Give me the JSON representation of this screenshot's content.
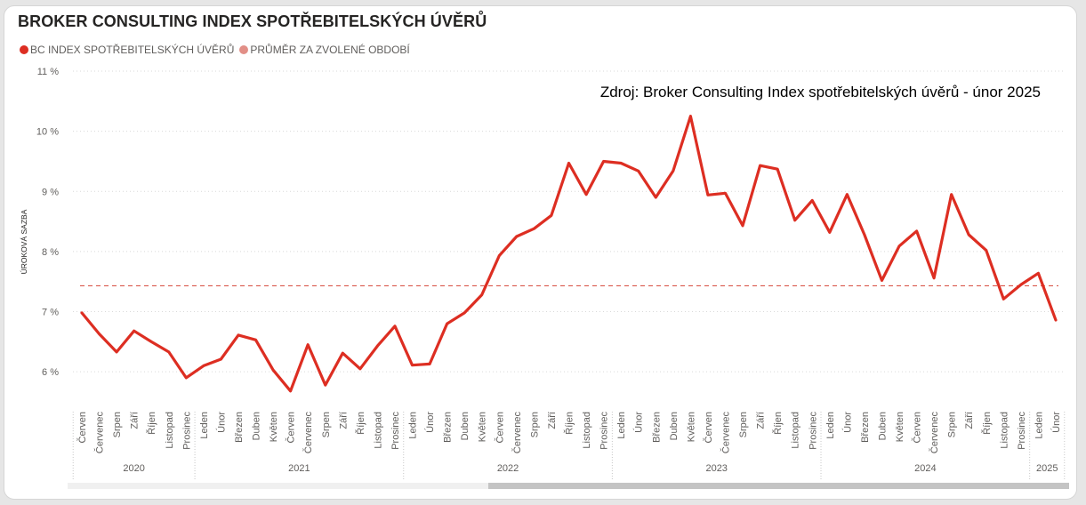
{
  "title": "BROKER CONSULTING INDEX SPOTŘEBITELSKÝCH ÚVĚRŮ",
  "legend": [
    {
      "label": "BC INDEX SPOTŘEBITELSKÝCH ÚVĚRŮ",
      "color": "#dd2e22"
    },
    {
      "label": "PRŮMĚR ZA ZVOLENÉ OBDOBÍ",
      "color": "#e28f87"
    }
  ],
  "chart_data": {
    "type": "line",
    "annotation": "Zdroj: Broker Consulting Index spotřebitelských úvěrů - únor 2025",
    "ylabel": "ÚROKOVÁ SAZBA",
    "ylim": [
      5.5,
      11
    ],
    "yticks": [
      6,
      7,
      8,
      9,
      10,
      11
    ],
    "ytick_labels": [
      "6 %",
      "7 %",
      "8 %",
      "9 %",
      "10 %",
      "11 %"
    ],
    "grid": true,
    "x": [
      "Červen",
      "Červenec",
      "Srpen",
      "Září",
      "Říjen",
      "Listopad",
      "Prosinec",
      "Leden",
      "Únor",
      "Březen",
      "Duben",
      "Květen",
      "Červen",
      "Červenec",
      "Srpen",
      "Září",
      "Říjen",
      "Listopad",
      "Prosinec",
      "Leden",
      "Únor",
      "Březen",
      "Duben",
      "Květen",
      "Červen",
      "Červenec",
      "Srpen",
      "Září",
      "Říjen",
      "Listopad",
      "Prosinec",
      "Leden",
      "Únor",
      "Březen",
      "Duben",
      "Květen",
      "Červen",
      "Červenec",
      "Srpen",
      "Září",
      "Říjen",
      "Listopad",
      "Prosinec",
      "Leden",
      "Únor",
      "Březen",
      "Duben",
      "Květen",
      "Červen",
      "Červenec",
      "Srpen",
      "Září",
      "Říjen",
      "Listopad",
      "Prosinec",
      "Leden",
      "Únor"
    ],
    "years": [
      {
        "label": "2020",
        "count": 7
      },
      {
        "label": "2021",
        "count": 12
      },
      {
        "label": "2022",
        "count": 12
      },
      {
        "label": "2023",
        "count": 12
      },
      {
        "label": "2024",
        "count": 12
      },
      {
        "label": "2025",
        "count": 2
      }
    ],
    "series": [
      {
        "name": "BC INDEX SPOTŘEBITELSKÝCH ÚVĚRŮ",
        "color": "#dd2e22",
        "values": [
          6.98,
          6.63,
          6.33,
          6.68,
          6.5,
          6.33,
          5.9,
          6.1,
          6.21,
          6.61,
          6.53,
          6.03,
          5.68,
          6.45,
          5.78,
          6.31,
          6.05,
          6.43,
          6.76,
          6.11,
          6.13,
          6.8,
          6.98,
          7.28,
          7.93,
          8.25,
          8.38,
          8.6,
          9.47,
          8.95,
          9.5,
          9.47,
          9.34,
          8.9,
          9.34,
          10.25,
          8.94,
          8.97,
          8.43,
          9.43,
          9.37,
          8.52,
          8.85,
          8.32,
          8.95,
          8.28,
          7.52,
          8.09,
          8.34,
          7.56,
          8.95,
          8.28,
          8.02,
          7.21,
          7.45,
          7.64,
          6.86
        ]
      }
    ],
    "average": {
      "name": "PRŮMĚR ZA ZVOLENÉ OBDOBÍ",
      "value": 7.43,
      "color": "#e28f87"
    }
  }
}
